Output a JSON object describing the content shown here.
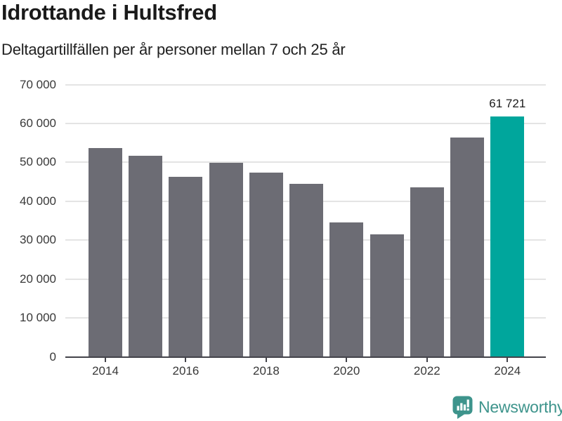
{
  "header": {
    "title": "Idrottande i Hultsfred",
    "subtitle": "Deltagartillfällen per år personer mellan 7 och 25 år"
  },
  "chart_data": {
    "type": "bar",
    "categories": [
      2014,
      2015,
      2016,
      2017,
      2018,
      2019,
      2020,
      2021,
      2022,
      2023,
      2024
    ],
    "values": [
      53700,
      51700,
      46300,
      49900,
      47300,
      44400,
      34500,
      31400,
      43600,
      56400,
      61721
    ],
    "title": "Idrottande i Hultsfred",
    "subtitle": "Deltagartillfällen per år personer mellan 7 och 25 år",
    "xlabel": "",
    "ylabel": "",
    "ylim": [
      0,
      70000
    ],
    "ytick_step": 10000,
    "ytick_labels": [
      "0",
      "10 000",
      "20 000",
      "30 000",
      "40 000",
      "50 000",
      "60 000",
      "70 000"
    ],
    "xtick_labels": [
      "2014",
      "2016",
      "2018",
      "2020",
      "2022",
      "2024"
    ],
    "grid": true,
    "legend": false,
    "highlight_index": 10,
    "annotation": {
      "text": "61 721",
      "category": 2024
    },
    "colors": {
      "bar": "#6c6c74",
      "highlight": "#00a69c",
      "gridline": "#e4e4e4",
      "axis": "#43434a",
      "label": "#383838"
    }
  },
  "footer": {
    "brand": "Newsworthy",
    "brand_color": "#3e948c",
    "logo_icon": "speech-bubble-bar-chart-icon"
  }
}
